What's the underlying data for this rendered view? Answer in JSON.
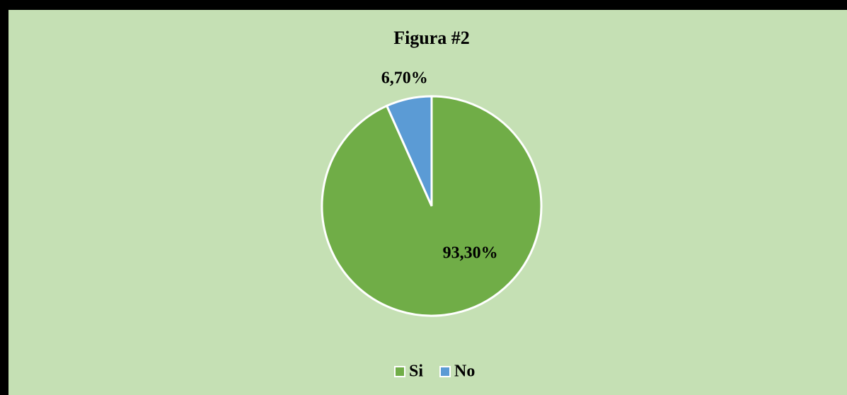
{
  "chart_data": {
    "type": "pie",
    "title": "Figura #2",
    "categories": [
      "Si",
      "No"
    ],
    "values": [
      93.3,
      6.7
    ],
    "value_labels": [
      "93,30%",
      "6,70%"
    ],
    "colors": [
      "#70ad47",
      "#5b9bd5"
    ],
    "legend": "bottom"
  }
}
